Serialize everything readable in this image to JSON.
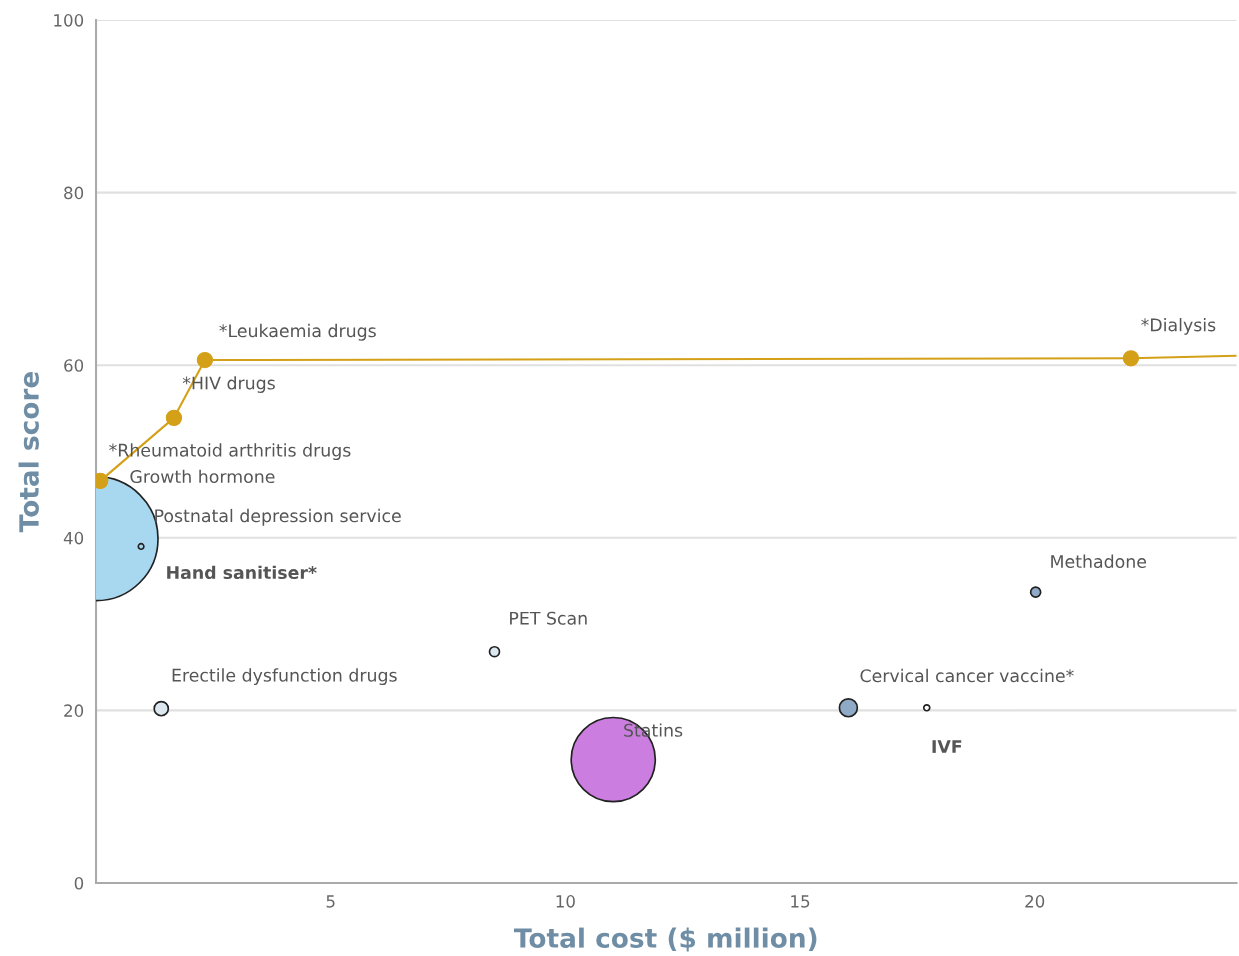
{
  "chart_data": {
    "type": "bubble",
    "xlabel": "Total cost ($ million)",
    "ylabel": "Total score",
    "xlim": [
      0,
      24.3
    ],
    "xticks": [
      5,
      10,
      15,
      20
    ],
    "ylim": [
      0,
      100
    ],
    "yticks": [
      0,
      20,
      40,
      60,
      80,
      100
    ],
    "grid": "y",
    "legend": false,
    "series": [
      {
        "x": [
          0,
          0.96,
          1.39,
          8.49,
          11.02,
          16.03,
          17.7,
          20.02
        ],
        "values": [
          39.9,
          39.0,
          20.2,
          26.8,
          14.3,
          20.3,
          20.3,
          33.7
        ],
        "sizes": [
          1,
          0.002,
          0.013,
          0.0065,
          0.46,
          0.021,
          0.0023,
          0.0065
        ],
        "colors": [
          "#a8d8f0",
          "#a8d8f0",
          "#dce8f0",
          "#dce8f0",
          "#cc7ee0",
          "#8faac6",
          "#ffffff",
          "#8faac6"
        ]
      },
      {
        "type": "line",
        "color": "#d4a017",
        "marker": "circle",
        "x": [
          0.09,
          1.66,
          2.32,
          22.05
        ],
        "values": [
          46.6,
          53.9,
          60.6,
          60.8
        ]
      },
      {
        "type": "line",
        "color": "#d4a017",
        "marker": "none",
        "x": [
          22.05,
          24.3
        ],
        "values": [
          60.8,
          61.1
        ]
      }
    ],
    "annotations": [
      {
        "text": "*Leukaemia drugs",
        "x": 2.32,
        "y": 60.6
      },
      {
        "text": "*HIV drugs",
        "x": 1.66,
        "y": 53.9
      },
      {
        "text": "*Rheumatoid arthritis drugs",
        "x": 0.09,
        "y": 46.6
      },
      {
        "text": "Growth hormone",
        "x": 0.09,
        "y": 46.6
      },
      {
        "text": "Postnatal depression service",
        "x": 0.96,
        "y": 39.0
      },
      "Hand sanitiser*",
      {
        "text": "Erectile dysfunction drugs",
        "x": 1.39,
        "y": 20.2
      },
      {
        "text": "PET Scan",
        "x": 8.49,
        "y": 26.8
      },
      {
        "text": "Statins",
        "x": 11.02,
        "y": 14.3
      },
      {
        "text": "Cervical cancer vaccine*",
        "x": 16.03,
        "y": 20.3
      },
      {
        "text": "IVF",
        "x": 17.7,
        "y": 20.3
      },
      {
        "text": "Methadone",
        "x": 20.02,
        "y": 33.7
      },
      {
        "text": "*Dialysis",
        "x": 22.05,
        "y": 60.8
      }
    ]
  }
}
